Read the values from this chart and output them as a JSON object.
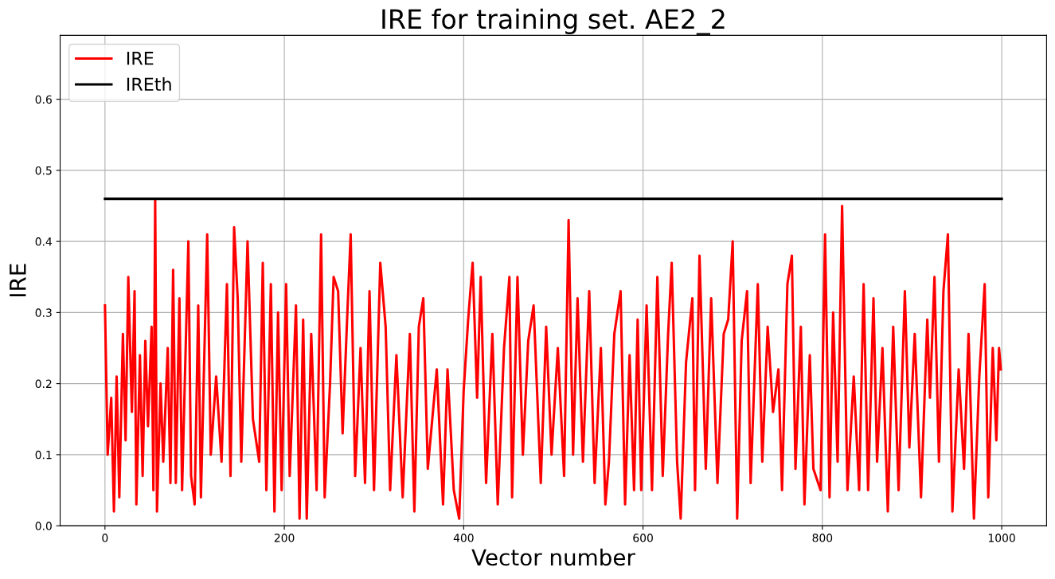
{
  "chart_data": {
    "type": "line",
    "title": "IRE for training set. AE2_2",
    "xlabel": "Vector number",
    "ylabel": "IRE",
    "xlim": [
      -50,
      1050
    ],
    "ylim": [
      0,
      0.69
    ],
    "xticks": [
      0,
      200,
      400,
      600,
      800,
      1000
    ],
    "yticks": [
      {
        "value": 0,
        "label": "0.0"
      },
      0.1,
      0.2,
      0.3,
      0.4,
      0.5,
      0.6
    ],
    "grid": true,
    "legend": "top left",
    "series": [
      {
        "name": "IRE",
        "color": "#ff0000",
        "x": [
          0,
          3,
          7,
          10,
          13,
          16,
          20,
          23,
          26,
          30,
          33,
          35,
          39,
          42,
          45,
          48,
          52,
          54,
          56,
          58,
          62,
          65,
          70,
          73,
          76,
          79,
          83,
          86,
          93,
          96,
          100,
          104,
          107,
          114,
          118,
          124,
          130,
          136,
          140,
          144,
          148,
          152,
          159,
          165,
          172,
          176,
          180,
          185,
          189,
          193,
          197,
          202,
          206,
          213,
          217,
          221,
          225,
          230,
          236,
          241,
          245,
          251,
          255,
          260,
          265,
          270,
          274,
          279,
          285,
          290,
          295,
          300,
          307,
          313,
          318,
          325,
          332,
          340,
          345,
          350,
          355,
          360,
          370,
          377,
          382,
          389,
          395,
          400,
          405,
          410,
          415,
          419,
          425,
          432,
          438,
          445,
          451,
          454,
          460,
          466,
          472,
          478,
          486,
          492,
          498,
          505,
          512,
          517,
          522,
          527,
          533,
          540,
          546,
          553,
          558,
          562,
          568,
          575,
          580,
          585,
          590,
          594,
          598,
          604,
          610,
          616,
          622,
          628,
          632,
          638,
          642,
          648,
          655,
          658,
          663,
          670,
          676,
          683,
          690,
          695,
          700,
          705,
          710,
          716,
          720,
          728,
          733,
          739,
          745,
          751,
          755,
          761,
          766,
          770,
          776,
          780,
          786,
          790,
          798,
          803,
          808,
          812,
          817,
          822,
          828,
          835,
          841,
          846,
          851,
          857,
          861,
          867,
          873,
          879,
          885,
          892,
          897,
          903,
          910,
          917,
          920,
          925,
          930,
          935,
          940,
          945,
          952,
          958,
          963,
          969,
          975,
          981,
          985,
          990,
          994,
          997,
          999
        ],
        "values": [
          0.31,
          0.1,
          0.18,
          0.02,
          0.21,
          0.04,
          0.27,
          0.12,
          0.35,
          0.16,
          0.33,
          0.03,
          0.24,
          0.07,
          0.26,
          0.14,
          0.28,
          0.05,
          0.46,
          0.02,
          0.2,
          0.09,
          0.25,
          0.06,
          0.36,
          0.06,
          0.32,
          0.05,
          0.4,
          0.07,
          0.03,
          0.31,
          0.04,
          0.41,
          0.1,
          0.21,
          0.09,
          0.34,
          0.07,
          0.42,
          0.32,
          0.09,
          0.4,
          0.15,
          0.09,
          0.37,
          0.05,
          0.34,
          0.02,
          0.3,
          0.05,
          0.34,
          0.07,
          0.31,
          0.01,
          0.29,
          0.01,
          0.27,
          0.05,
          0.41,
          0.04,
          0.2,
          0.35,
          0.33,
          0.13,
          0.29,
          0.41,
          0.07,
          0.25,
          0.06,
          0.33,
          0.05,
          0.37,
          0.28,
          0.05,
          0.24,
          0.04,
          0.27,
          0.02,
          0.28,
          0.32,
          0.08,
          0.22,
          0.03,
          0.22,
          0.05,
          0.01,
          0.19,
          0.29,
          0.37,
          0.18,
          0.35,
          0.06,
          0.27,
          0.03,
          0.25,
          0.35,
          0.04,
          0.35,
          0.1,
          0.26,
          0.31,
          0.06,
          0.28,
          0.1,
          0.25,
          0.07,
          0.43,
          0.1,
          0.32,
          0.09,
          0.33,
          0.06,
          0.25,
          0.03,
          0.09,
          0.27,
          0.33,
          0.03,
          0.24,
          0.05,
          0.29,
          0.05,
          0.31,
          0.05,
          0.35,
          0.07,
          0.27,
          0.37,
          0.09,
          0.01,
          0.23,
          0.32,
          0.05,
          0.38,
          0.08,
          0.32,
          0.06,
          0.27,
          0.29,
          0.4,
          0.01,
          0.26,
          0.33,
          0.06,
          0.34,
          0.09,
          0.28,
          0.16,
          0.22,
          0.05,
          0.34,
          0.38,
          0.08,
          0.28,
          0.03,
          0.24,
          0.08,
          0.05,
          0.41,
          0.04,
          0.3,
          0.09,
          0.45,
          0.05,
          0.21,
          0.05,
          0.34,
          0.05,
          0.32,
          0.09,
          0.25,
          0.02,
          0.28,
          0.05,
          0.33,
          0.11,
          0.27,
          0.04,
          0.29,
          0.18,
          0.35,
          0.09,
          0.33,
          0.41,
          0.02,
          0.22,
          0.08,
          0.27,
          0.01,
          0.21,
          0.34,
          0.04,
          0.25,
          0.12,
          0.25,
          0.22
        ]
      },
      {
        "name": "IREth",
        "color": "#000000",
        "x": [
          0,
          1000
        ],
        "values": [
          0.46,
          0.46
        ]
      }
    ]
  }
}
